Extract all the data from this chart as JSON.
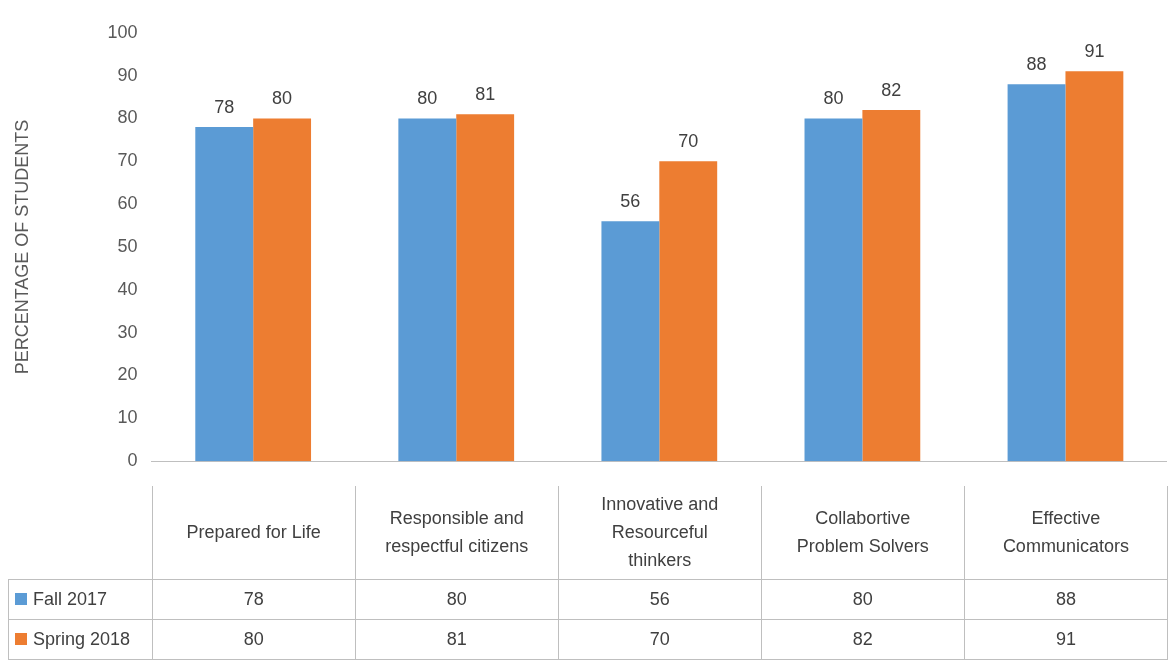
{
  "chart_data": {
    "type": "bar",
    "ylabel": "PERCENTAGE OF STUDENTS",
    "categories": [
      "Prepared for Life",
      "Responsible and respectful citizens",
      "Innovative and Resourceful thinkers",
      "Collabortive Problem Solvers",
      "Effective Communicators"
    ],
    "series": [
      {
        "name": "Fall 2017",
        "color": "#5b9bd5",
        "values": [
          78,
          80,
          56,
          80,
          88
        ]
      },
      {
        "name": "Spring 2018",
        "color": "#ed7d31",
        "values": [
          80,
          81,
          70,
          82,
          91
        ]
      }
    ],
    "ylim": [
      0,
      100
    ],
    "yticks": [
      0,
      10,
      20,
      30,
      40,
      50,
      60,
      70,
      80,
      90,
      100
    ],
    "annotations": [
      "78",
      "80",
      "56",
      "80",
      "88",
      "80",
      "81",
      "70",
      "82",
      "91"
    ],
    "grid": false,
    "legend": "bottom",
    "data_labels": true
  }
}
